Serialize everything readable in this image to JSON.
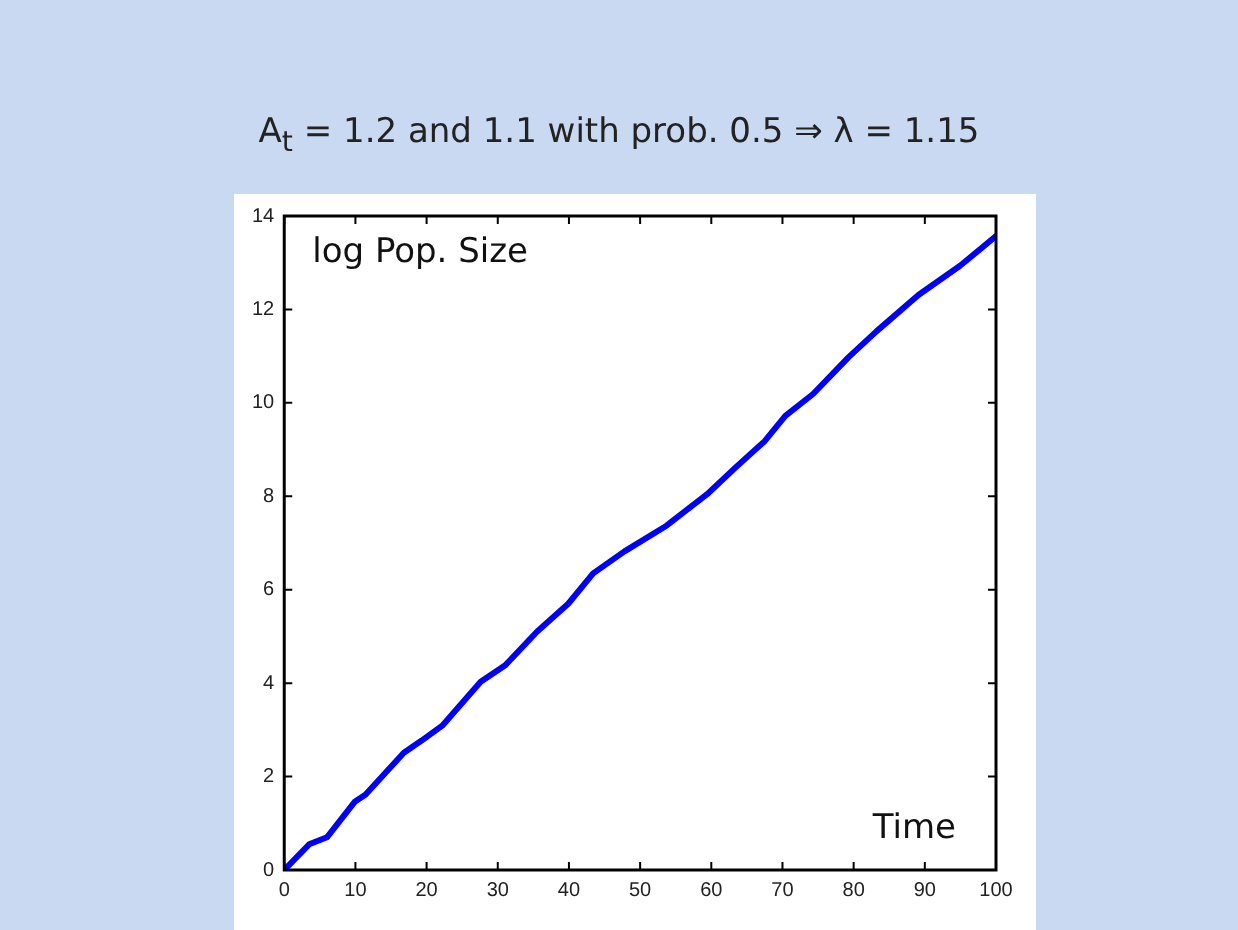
{
  "chart_data": {
    "type": "line",
    "title": "A$_{t}$ = 1.2 and 1.1 with prob. 0.5 ⇒ λ = 1.15",
    "xlabel": "Time",
    "ylabel": "log Pop. Size",
    "series": [
      {
        "color": "#0000ff",
        "x": [
          0,
          3.5,
          6,
          9.9,
          11.4,
          16.8,
          19.3,
          22.2,
          27.6,
          31.1,
          35.5,
          39.9,
          43.4,
          47.8,
          53.7,
          59.6,
          63.5,
          67.5,
          70.4,
          74.3,
          79.3,
          83.2,
          89.1,
          95,
          100
        ],
        "values": [
          0,
          0.55,
          0.7,
          1.46,
          1.61,
          2.51,
          2.77,
          3.09,
          4.03,
          4.39,
          5.1,
          5.7,
          6.35,
          6.82,
          7.37,
          8.07,
          8.63,
          9.18,
          9.72,
          10.19,
          10.98,
          11.53,
          12.31,
          12.94,
          13.57
        ]
      }
    ],
    "xlim": [
      0,
      100
    ],
    "xticks": [
      0,
      10,
      20,
      30,
      40,
      50,
      60,
      70,
      80,
      90,
      100
    ],
    "ylim": [
      0,
      14
    ],
    "yticks": [
      0,
      2,
      4,
      6,
      8,
      10,
      12,
      14
    ],
    "grid": false,
    "legend": false,
    "marker": "none",
    "line_style": "solid"
  }
}
